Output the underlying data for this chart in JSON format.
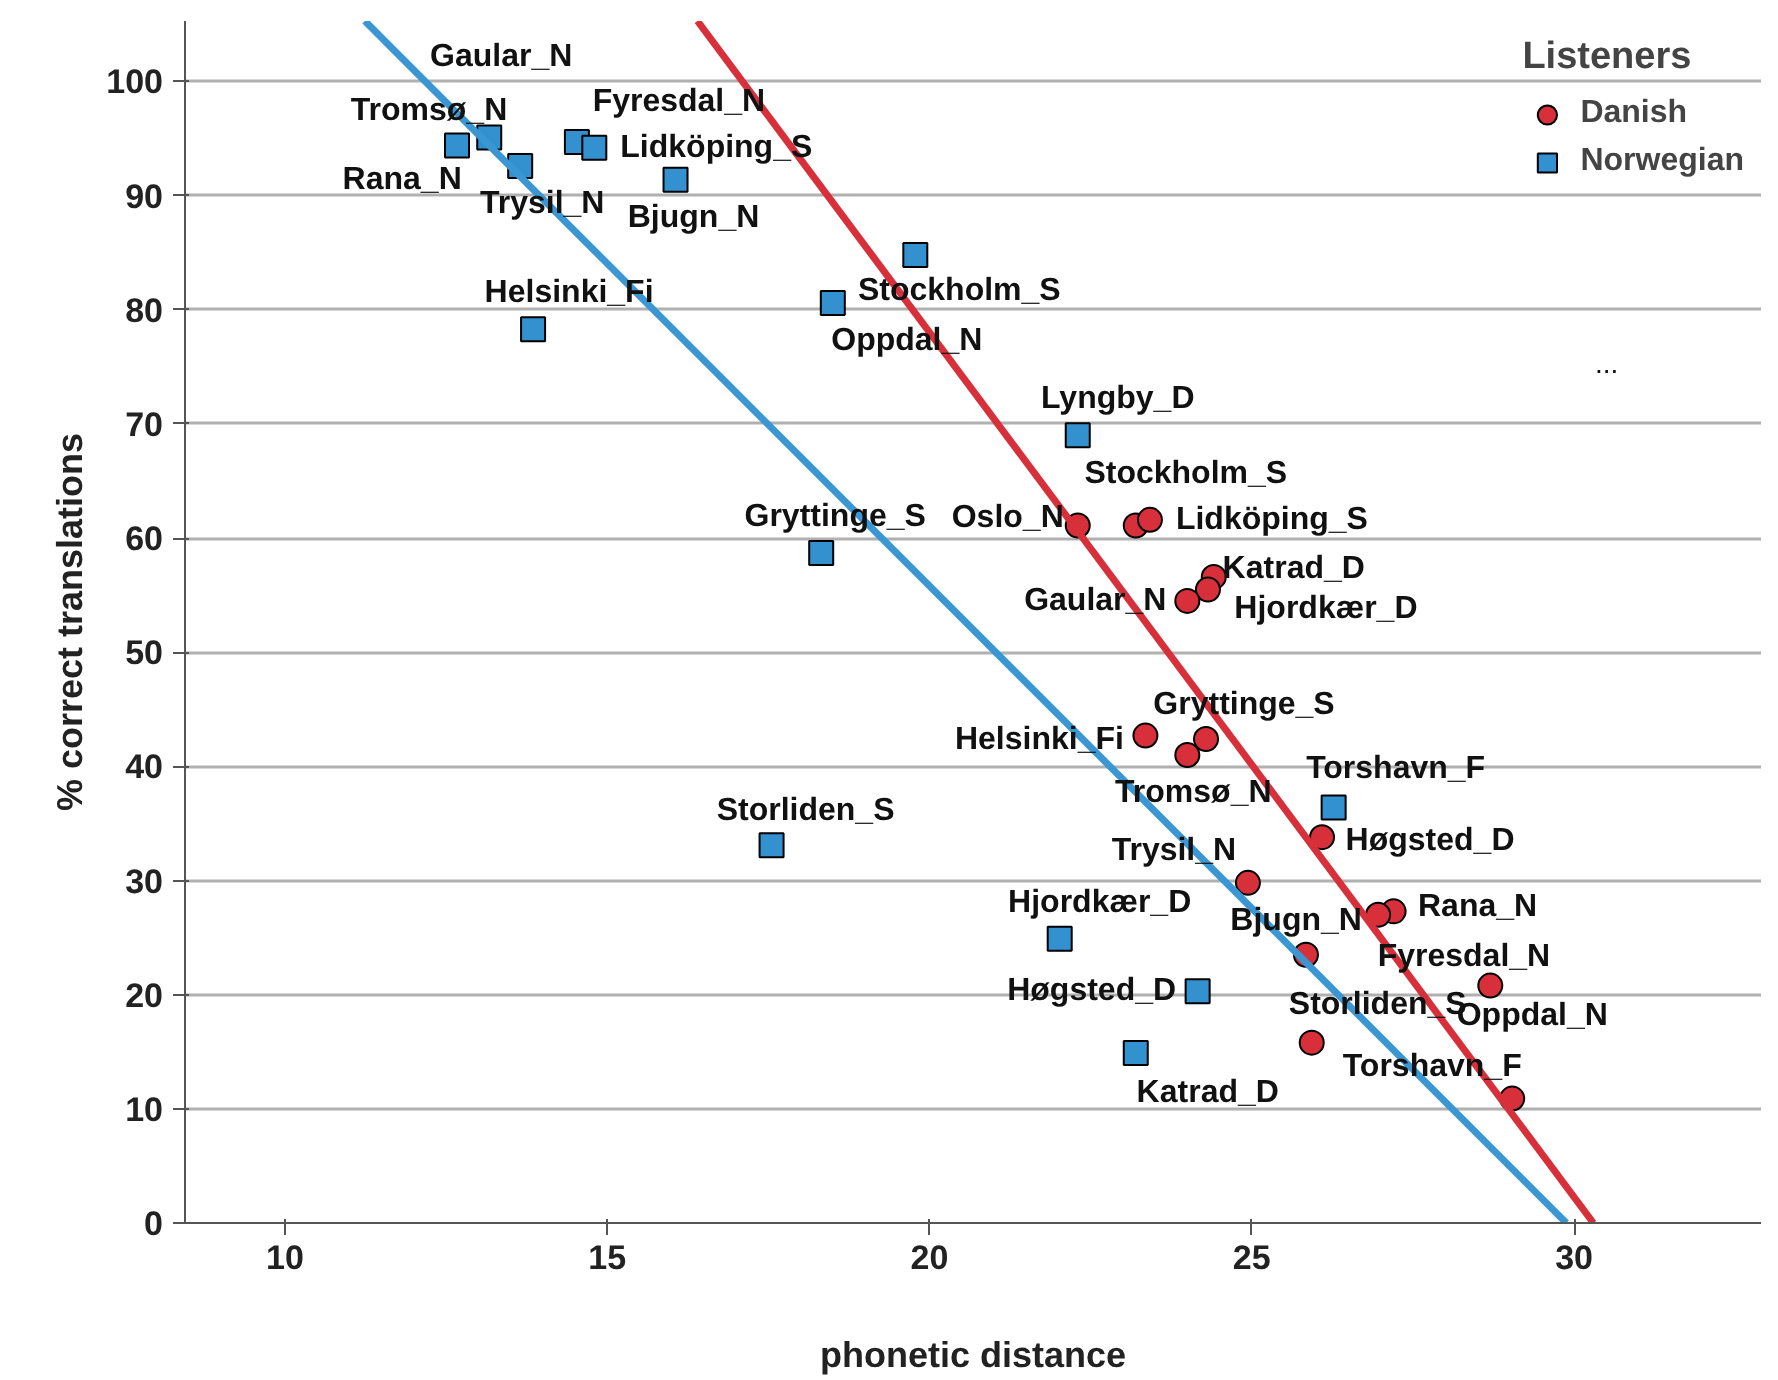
{
  "chart_data": {
    "type": "scatter",
    "xlabel": "phonetic distance",
    "ylabel": "% correct translations",
    "legend_title": "Listeners",
    "legend": "top right",
    "grid": "y",
    "xlim": [
      8.45,
      32.9
    ],
    "ylim": [
      0,
      105.3
    ],
    "xticks": [
      10,
      15,
      20,
      25,
      30
    ],
    "yticks": [
      0,
      10,
      20,
      30,
      40,
      50,
      60,
      70,
      80,
      90,
      100
    ],
    "series": [
      {
        "name": "Danish",
        "marker": "circle",
        "color": "#d7303a",
        "x": [
          22.3,
          23.2,
          23.42,
          24.41,
          24.32,
          24.0,
          23.35,
          24.29,
          24.0,
          26.09,
          24.94,
          27.2,
          26.96,
          25.84,
          28.7,
          25.93,
          29.04
        ],
        "values": [
          61.1,
          61.1,
          61.6,
          56.6,
          55.5,
          54.5,
          42.7,
          42.4,
          41.0,
          33.8,
          29.8,
          27.3,
          27.0,
          23.5,
          20.8,
          15.8,
          10.9
        ]
      },
      {
        "name": "Norwegian",
        "marker": "square",
        "color": "#3391d0",
        "x": [
          12.67,
          13.17,
          13.5,
          13.65,
          14.53,
          14.8,
          16.06,
          19.78,
          18.5,
          13.85,
          22.3,
          18.32,
          17.55,
          26.27,
          22.02,
          24.16,
          23.2
        ],
        "values": [
          94.4,
          95.1,
          null,
          92.6,
          94.7,
          94.2,
          91.4,
          84.8,
          80.6,
          78.3,
          69.0,
          58.7,
          33.1,
          36.4,
          24.9,
          20.3,
          14.9
        ]
      },
      {
        "type": "line",
        "color": "#d7303a",
        "x": [
          16.4,
          30.3
        ],
        "values": [
          105.3,
          0
        ]
      },
      {
        "type": "line",
        "color": "#3a97d4",
        "x": [
          11.24,
          29.88
        ],
        "values": [
          105.3,
          0
        ]
      }
    ],
    "annotations": [
      {
        "text": "Gaular_N",
        "x": 13.17,
        "y": 95.1
      },
      {
        "text": "Tromsø_N",
        "x": 12.67,
        "y": 94.4
      },
      {
        "text": "Rana_N",
        "x": 13.65,
        "y": 92.6
      },
      {
        "text": "Trysil_N",
        "x": 13.65,
        "y": 92.6
      },
      {
        "text": "Fyresdal_N",
        "x": 14.53,
        "y": 94.7
      },
      {
        "text": "Lidköping_S",
        "x": 14.8,
        "y": 94.2
      },
      {
        "text": "Bjugn_N",
        "x": 16.06,
        "y": 91.4
      },
      {
        "text": "Stockholm_S",
        "x": 19.78,
        "y": 84.8
      },
      {
        "text": "Oppdal_N",
        "x": 18.5,
        "y": 80.6
      },
      {
        "text": "Helsinki_Fi",
        "x": 13.85,
        "y": 78.3
      },
      {
        "text": "Lyngby_D",
        "x": 22.3,
        "y": 69.0
      },
      {
        "text": "Gryttinge_S",
        "x": 18.32,
        "y": 58.7
      },
      {
        "text": "Storliden_S",
        "x": 17.55,
        "y": 33.1
      },
      {
        "text": "Torshavn_F",
        "x": 26.27,
        "y": 36.4
      },
      {
        "text": "Hjordkær_D",
        "x": 22.02,
        "y": 24.9
      },
      {
        "text": "Høgsted_D",
        "x": 24.16,
        "y": 20.3
      },
      {
        "text": "Katrad_D",
        "x": 23.2,
        "y": 14.9
      },
      {
        "text": "Oslo_N",
        "x": 22.3,
        "y": 61.1
      },
      {
        "text": "Stockholm_S",
        "x": 23.2,
        "y": 61.1
      },
      {
        "text": "Lidköping_S",
        "x": 23.42,
        "y": 61.6
      },
      {
        "text": "Katrad_D",
        "x": 24.41,
        "y": 56.6
      },
      {
        "text": "Hjordkær_D",
        "x": 24.32,
        "y": 55.5
      },
      {
        "text": "Gaular_N",
        "x": 24.0,
        "y": 54.5
      },
      {
        "text": "Helsinki_Fi",
        "x": 23.35,
        "y": 42.7
      },
      {
        "text": "Gryttinge_S",
        "x": 24.29,
        "y": 42.4
      },
      {
        "text": "Tromsø_N",
        "x": 24.0,
        "y": 41.0
      },
      {
        "text": "Høgsted_D",
        "x": 26.09,
        "y": 33.8
      },
      {
        "text": "Trysil_N",
        "x": 24.94,
        "y": 29.8
      },
      {
        "text": "Rana_N",
        "x": 27.2,
        "y": 27.3
      },
      {
        "text": "Bjugn_N",
        "x": 26.96,
        "y": 27.0
      },
      {
        "text": "Fyresdal_N",
        "x": 25.84,
        "y": 23.5
      },
      {
        "text": "Oppdal_N",
        "x": 28.7,
        "y": 20.8
      },
      {
        "text": "Storliden_S",
        "x": 25.93,
        "y": 15.8
      },
      {
        "text": "Torshavn_F",
        "x": 29.04,
        "y": 10.9
      },
      "..."
    ]
  }
}
